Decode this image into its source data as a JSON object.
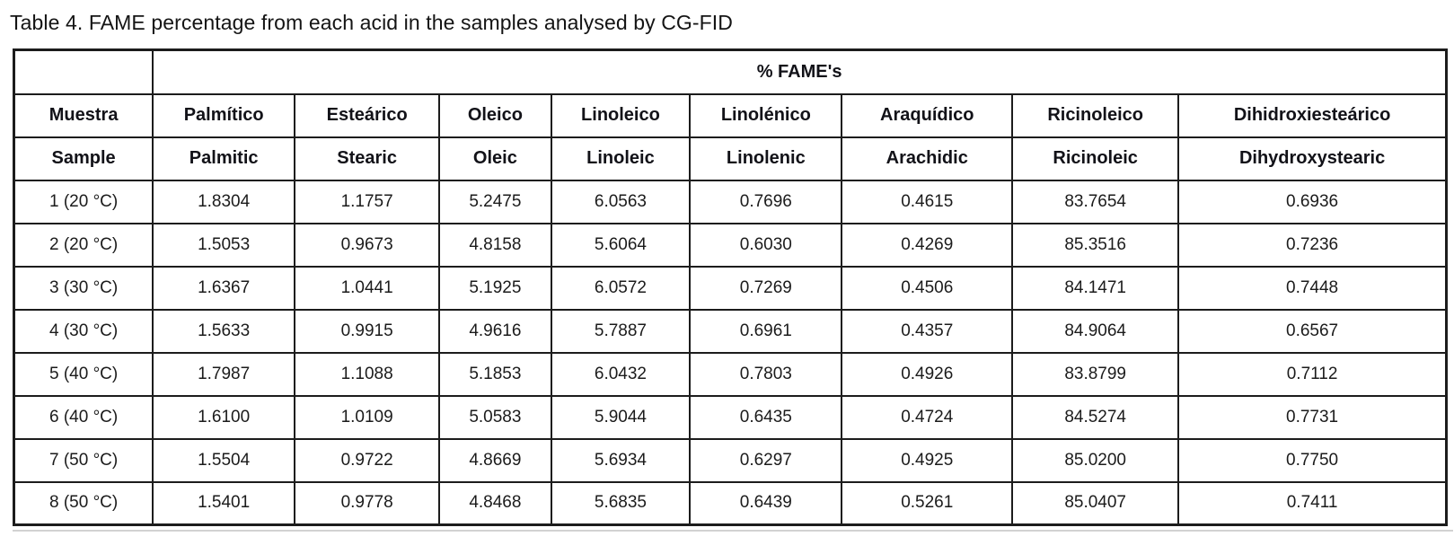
{
  "caption": "Table 4. FAME percentage from each acid in the samples analysed by CG-FID",
  "table": {
    "span_header": "% FAME's",
    "headers_es": [
      "Muestra",
      "Palmítico",
      "Esteárico",
      "Oleico",
      "Linoleico",
      "Linolénico",
      "Araquídico",
      "Ricinoleico",
      "Dihidroxiesteárico"
    ],
    "headers_en": [
      "Sample",
      "Palmitic",
      "Stearic",
      "Oleic",
      "Linoleic",
      "Linolenic",
      "Arachidic",
      "Ricinoleic",
      "Dihydroxystearic"
    ],
    "rows": [
      [
        "1 (20 °C)",
        "1.8304",
        "1.1757",
        "5.2475",
        "6.0563",
        "0.7696",
        "0.4615",
        "83.7654",
        "0.6936"
      ],
      [
        "2 (20 °C)",
        "1.5053",
        "0.9673",
        "4.8158",
        "5.6064",
        "0.6030",
        "0.4269",
        "85.3516",
        "0.7236"
      ],
      [
        "3 (30 °C)",
        "1.6367",
        "1.0441",
        "5.1925",
        "6.0572",
        "0.7269",
        "0.4506",
        "84.1471",
        "0.7448"
      ],
      [
        "4 (30 °C)",
        "1.5633",
        "0.9915",
        "4.9616",
        "5.7887",
        "0.6961",
        "0.4357",
        "84.9064",
        "0.6567"
      ],
      [
        "5 (40 °C)",
        "1.7987",
        "1.1088",
        "5.1853",
        "6.0432",
        "0.7803",
        "0.4926",
        "83.8799",
        "0.7112"
      ],
      [
        "6 (40 °C)",
        "1.6100",
        "1.0109",
        "5.0583",
        "5.9044",
        "0.6435",
        "0.4724",
        "84.5274",
        "0.7731"
      ],
      [
        "7 (50 °C)",
        "1.5504",
        "0.9722",
        "4.8669",
        "5.6934",
        "0.6297",
        "0.4925",
        "85.0200",
        "0.7750"
      ],
      [
        "8 (50 °C)",
        "1.5401",
        "0.9778",
        "4.8468",
        "5.6835",
        "0.6439",
        "0.5261",
        "85.0407",
        "0.7411"
      ]
    ],
    "col_widths_pct": [
      9.7,
      9.9,
      10.1,
      7.8,
      9.7,
      10.6,
      11.9,
      11.6,
      18.7
    ]
  },
  "colors": {
    "border": "#1c1c1c",
    "text": "#161616",
    "background": "#ffffff"
  }
}
